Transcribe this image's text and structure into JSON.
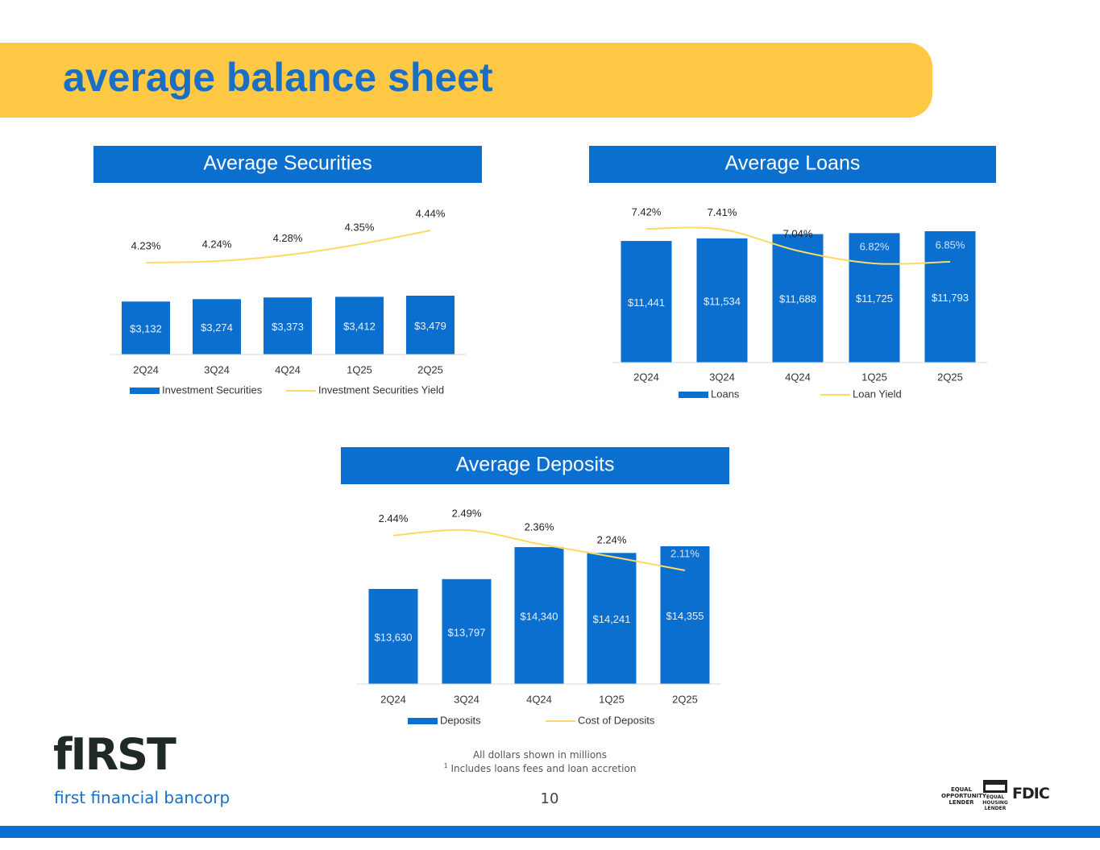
{
  "header": {
    "title": "average balance sheet"
  },
  "chart_data": [
    {
      "type": "bar",
      "title": "Average Securities",
      "categories": [
        "2Q24",
        "3Q24",
        "4Q24",
        "1Q25",
        "2Q25"
      ],
      "series": [
        {
          "name": "Investment Securities",
          "color": "#0a6fcf",
          "values": [
            3132,
            3274,
            3373,
            3412,
            3479
          ],
          "value_labels": [
            "$3,132",
            "$3,274",
            "$3,373",
            "$3,412",
            "$3,479"
          ]
        },
        {
          "name": "Investment Securities Yield",
          "color": "#ffd966",
          "axis": "y2",
          "values": [
            4.23,
            4.24,
            4.28,
            4.35,
            4.44
          ],
          "value_labels": [
            "4.23%",
            "4.24%",
            "4.28%",
            "4.35%",
            "4.44%"
          ]
        }
      ]
    },
    {
      "type": "bar",
      "title": "Average Loans",
      "categories": [
        "2Q24",
        "3Q24",
        "4Q24",
        "1Q25",
        "2Q25"
      ],
      "series": [
        {
          "name": "Loans",
          "color": "#0a6fcf",
          "values": [
            11441,
            11534,
            11688,
            11725,
            11793
          ],
          "value_labels": [
            "$11,441",
            "$11,534",
            "$11,688",
            "$11,725",
            "$11,793"
          ]
        },
        {
          "name": "Loan Yield",
          "color": "#ffd966",
          "axis": "y2",
          "values": [
            7.42,
            7.41,
            7.04,
            6.82,
            6.85
          ],
          "value_labels": [
            "7.42%",
            "7.41%",
            "7.04%",
            "6.82%",
            "6.85%"
          ]
        }
      ]
    },
    {
      "type": "bar",
      "title": "Average Deposits",
      "categories": [
        "2Q24",
        "3Q24",
        "4Q24",
        "1Q25",
        "2Q25"
      ],
      "series": [
        {
          "name": "Deposits",
          "color": "#0a6fcf",
          "values": [
            13630,
            13797,
            14340,
            14241,
            14355
          ],
          "value_labels": [
            "$13,630",
            "$13,797",
            "$14,340",
            "$14,241",
            "$14,355"
          ]
        },
        {
          "name": "Cost of Deposits",
          "color": "#ffd966",
          "axis": "y2",
          "values": [
            2.44,
            2.49,
            2.36,
            2.24,
            2.11
          ],
          "value_labels": [
            "2.44%",
            "2.49%",
            "2.36%",
            "2.24%",
            "2.11%"
          ]
        }
      ]
    }
  ],
  "footer": {
    "notes": [
      "All dollars shown in millions",
      "Includes loans fees and loan accretion"
    ],
    "note_marker": "1",
    "page_number": "10",
    "logo": {
      "mark": "fIRST",
      "name": "first financial bancorp"
    },
    "badges": [
      "EQUAL OPPORTUNITY LENDER",
      "EQUAL HOUSING LENDER",
      "FDIC"
    ]
  }
}
